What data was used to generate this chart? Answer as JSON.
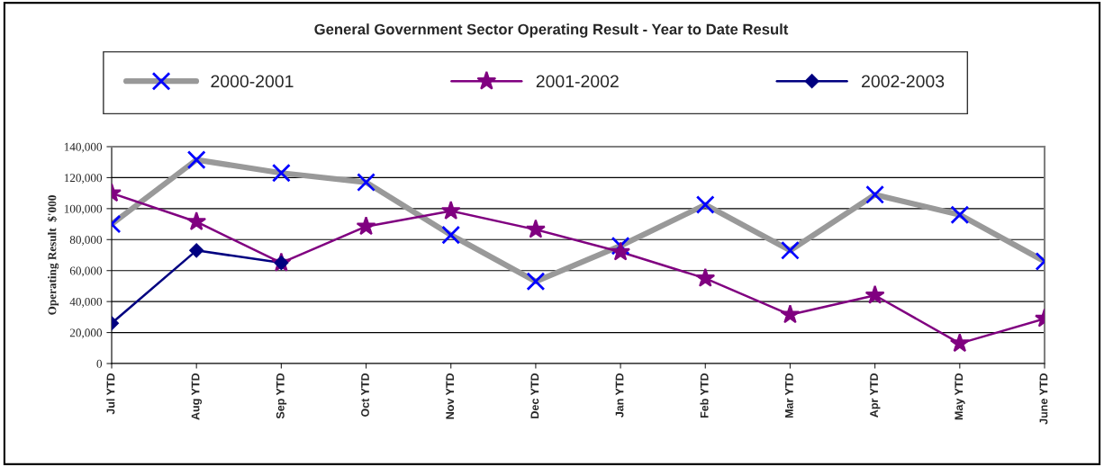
{
  "chart_data": {
    "type": "line",
    "title": "General Government Sector Operating Result - Year to Date Result",
    "ylabel": "Operating Result  $'000",
    "categories": [
      "Jul YTD",
      "Aug YTD",
      "Sep YTD",
      "Oct YTD",
      "Nov YTD",
      "Dec YTD",
      "Jan YTD",
      "Feb YTD",
      "Mar YTD",
      "Apr YTD",
      "May YTD",
      "June YTD"
    ],
    "series": [
      {
        "name": "2000-2001",
        "color": "#999999",
        "colors": [
          "#0000ff",
          "#0000ff",
          "#0000ff",
          "#0000ff",
          "#0000ff",
          "#0000ff",
          "#0000ff",
          "#0000ff",
          "#0000ff",
          "#0000ff",
          "#0000ff",
          "#0000ff"
        ],
        "marker": "cross",
        "values": [
          90000,
          131500,
          123000,
          117000,
          83000,
          53000,
          76000,
          102500,
          73000,
          109000,
          96000,
          66000
        ]
      },
      {
        "name": "2001-2002",
        "color": "#800080",
        "marker": "star",
        "values": [
          110000,
          91500,
          65000,
          88500,
          98500,
          86500,
          72000,
          55000,
          31500,
          44000,
          13000,
          29000
        ]
      },
      {
        "name": "2002-2003",
        "color": "#000080",
        "marker": "diamond",
        "values": [
          26000,
          73000,
          65000,
          null,
          null,
          null,
          null,
          null,
          null,
          null,
          null,
          null
        ]
      }
    ],
    "ylim": [
      0,
      140000
    ],
    "yticks": [
      {
        "value": 0,
        "label": "0"
      },
      {
        "value": 20000,
        "label": "20,000"
      },
      {
        "value": 40000,
        "label": "40,000"
      },
      {
        "value": 60000,
        "label": "60,000"
      },
      {
        "value": 80000,
        "label": "80,000"
      },
      {
        "value": 100000,
        "label": "100,000"
      },
      {
        "value": 120000,
        "label": "120,000"
      },
      {
        "value": 140000,
        "label": "140,000"
      }
    ],
    "grid": "y",
    "legend": "top"
  }
}
